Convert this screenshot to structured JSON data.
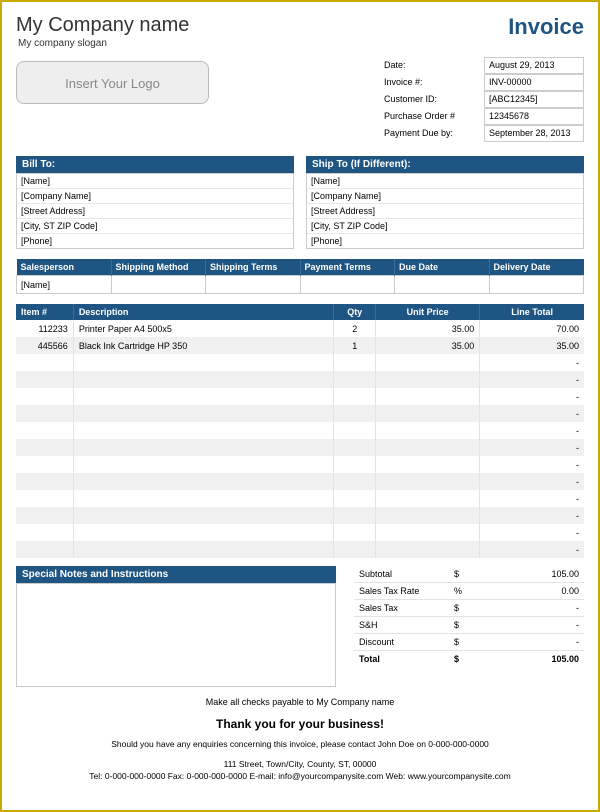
{
  "header": {
    "company_name": "My Company name",
    "slogan": "My company slogan",
    "invoice_label": "Invoice",
    "logo_placeholder": "Insert Your Logo"
  },
  "meta": {
    "date_label": "Date:",
    "date_value": "August 29, 2013",
    "invoice_no_label": "Invoice #:",
    "invoice_no_value": "INV-00000",
    "customer_id_label": "Customer ID:",
    "customer_id_value": "[ABC12345]",
    "po_label": "Purchase Order #",
    "po_value": "12345678",
    "due_label": "Payment Due by:",
    "due_value": "September 28, 2013"
  },
  "bill_to": {
    "heading": "Bill To:",
    "lines": [
      "[Name]",
      "[Company Name]",
      "[Street Address]",
      "[City, ST  ZIP Code]",
      "[Phone]"
    ]
  },
  "ship_to": {
    "heading": "Ship To (If Different):",
    "lines": [
      "[Name]",
      "[Company Name]",
      "[Street Address]",
      "[City, ST  ZIP Code]",
      "[Phone]"
    ]
  },
  "terms": {
    "headers": [
      "Salesperson",
      "Shipping Method",
      "Shipping Terms",
      "Payment Terms",
      "Due Date",
      "Delivery Date"
    ],
    "row": [
      "[Name]",
      "",
      "",
      "",
      "",
      ""
    ]
  },
  "items_table": {
    "headers": {
      "item": "Item #",
      "desc": "Description",
      "qty": "Qty",
      "price": "Unit Price",
      "total": "Line Total"
    },
    "rows": [
      {
        "item": "112233",
        "desc": "Printer Paper A4 500x5",
        "qty": "2",
        "price": "35.00",
        "total": "70.00"
      },
      {
        "item": "445566",
        "desc": "Black Ink Cartridge HP 350",
        "qty": "1",
        "price": "35.00",
        "total": "35.00"
      },
      {
        "item": "",
        "desc": "",
        "qty": "",
        "price": "",
        "total": "-"
      },
      {
        "item": "",
        "desc": "",
        "qty": "",
        "price": "",
        "total": "-"
      },
      {
        "item": "",
        "desc": "",
        "qty": "",
        "price": "",
        "total": "-"
      },
      {
        "item": "",
        "desc": "",
        "qty": "",
        "price": "",
        "total": "-"
      },
      {
        "item": "",
        "desc": "",
        "qty": "",
        "price": "",
        "total": "-"
      },
      {
        "item": "",
        "desc": "",
        "qty": "",
        "price": "",
        "total": "-"
      },
      {
        "item": "",
        "desc": "",
        "qty": "",
        "price": "",
        "total": "-"
      },
      {
        "item": "",
        "desc": "",
        "qty": "",
        "price": "",
        "total": "-"
      },
      {
        "item": "",
        "desc": "",
        "qty": "",
        "price": "",
        "total": "-"
      },
      {
        "item": "",
        "desc": "",
        "qty": "",
        "price": "",
        "total": "-"
      },
      {
        "item": "",
        "desc": "",
        "qty": "",
        "price": "",
        "total": "-"
      },
      {
        "item": "",
        "desc": "",
        "qty": "",
        "price": "",
        "total": "-"
      }
    ]
  },
  "notes": {
    "heading": "Special Notes and Instructions"
  },
  "totals": {
    "subtotal_label": "Subtotal",
    "subtotal_sym": "$",
    "subtotal_val": "105.00",
    "tax_rate_label": "Sales Tax Rate",
    "tax_rate_sym": "%",
    "tax_rate_val": "0.00",
    "tax_label": "Sales Tax",
    "tax_sym": "$",
    "tax_val": "-",
    "sh_label": "S&H",
    "sh_sym": "$",
    "sh_val": "-",
    "discount_label": "Discount",
    "discount_sym": "$",
    "discount_val": "-",
    "total_label": "Total",
    "total_sym": "$",
    "total_val": "105.00"
  },
  "footer": {
    "payable": "Make all checks payable to My Company name",
    "thank": "Thank you for your business!",
    "enquiry": "Should you have any enquiries concerning this invoice, please contact John Doe on 0-000-000-0000",
    "address": "111 Street, Town/City, County, ST, 00000",
    "contact": "Tel: 0-000-000-0000 Fax: 0-000-000-0000 E-mail: info@yourcompanysite.com Web: www.yourcompanysite.com"
  },
  "style": {
    "brand_color": "#1f5582",
    "border_color": "#c9a800",
    "alt_row_bg": "#f0f0f0"
  }
}
